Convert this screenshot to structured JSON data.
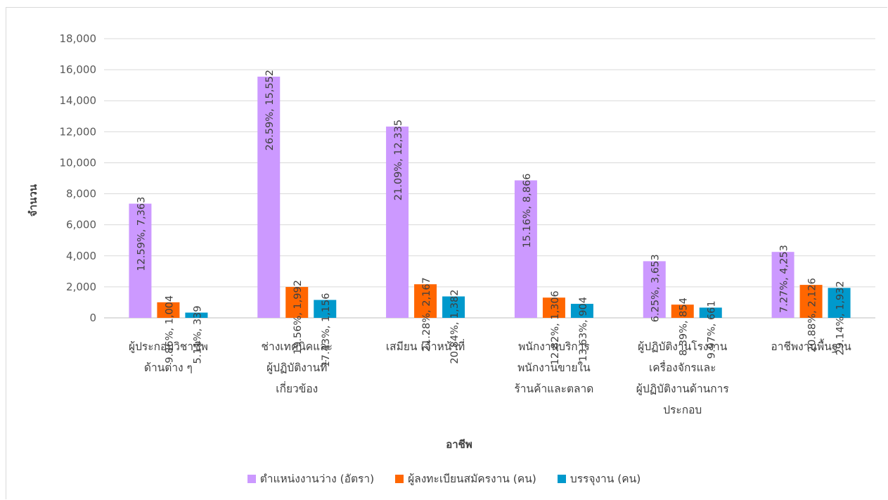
{
  "chart_data": {
    "type": "bar",
    "xlabel": "อาชีพ",
    "ylabel": "จำนวน",
    "ylim": [
      0,
      18000
    ],
    "yticks": [
      "0",
      "2,000",
      "4,000",
      "6,000",
      "8,000",
      "10,000",
      "12,000",
      "14,000",
      "16,000",
      "18,000"
    ],
    "grid": true,
    "legend_position": "bottom",
    "categories": [
      [
        "ผู้ประกอบวิชาชีพ",
        "ด้านต่าง ๆ"
      ],
      [
        "ช่างเทคนิคและ",
        "ผู้ปฏิบัติงานที่",
        "เกี่ยวข้อง"
      ],
      [
        "เสมียน เจ้าหน้าที่"
      ],
      [
        "พนักงานบริการ",
        "พนักงานขายใน",
        "ร้านค้าและตลาด"
      ],
      [
        "ผู้ปฏิบัติงานโรงงาน",
        "เครื่องจักรและ",
        "ผู้ปฏิบัติงานด้านการ",
        "ประกอบ"
      ],
      [
        "อาชีพงานพื้นฐาน"
      ]
    ],
    "series": [
      {
        "name": "ตำแหน่งงานว่าง (อัตรา)",
        "color": "#cc99ff",
        "values": [
          7363,
          15552,
          12335,
          8866,
          3653,
          4253
        ],
        "labels": [
          "12.59%, 7,363",
          "26.59%, 15,552",
          "21.09%, 12,335",
          "15.16%, 8,866",
          "6.25%, 3,653",
          "7.27%, 4,253"
        ]
      },
      {
        "name": "ผู้ลงทะเบียนสมัครงาน (คน)",
        "color": "#ff6600",
        "values": [
          1004,
          1992,
          2167,
          1306,
          854,
          2126
        ],
        "labels": [
          "9.86%, 1,004",
          "19.56%, 1,992",
          "21.28%, 2,167",
          "12.82%, 1,306",
          "8.39%, 854",
          "20.88%, 2,126"
        ]
      },
      {
        "name": "บรรจุงาน (คน)",
        "color": "#0099cc",
        "values": [
          339,
          1156,
          1382,
          904,
          661,
          1932
        ],
        "labels": [
          "5.11%, 339",
          "17.43%, 1,156",
          "20.84%, 1,382",
          "13.63%, 904",
          "9.97%, 661",
          "29.14%, 1,932"
        ]
      }
    ]
  }
}
